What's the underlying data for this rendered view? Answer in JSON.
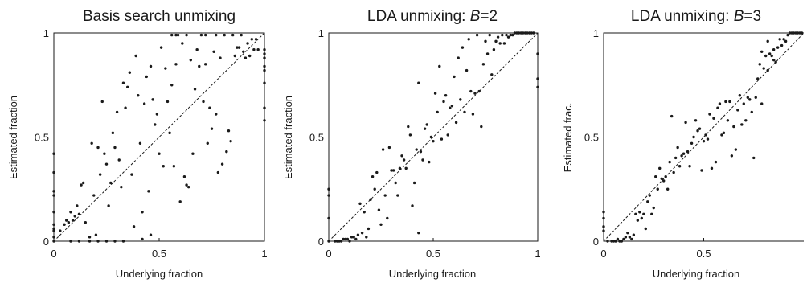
{
  "chart_data": [
    {
      "type": "scatter",
      "title": "Basis search unmixing",
      "title_plain": "Basis search unmixing",
      "title_italic": "",
      "title_suffix": "",
      "xlabel": "Underlying fraction",
      "ylabel": "Estimated fraction",
      "xlim": [
        0,
        1
      ],
      "ylim": [
        0,
        1
      ],
      "xticks": [
        0,
        0.5,
        1
      ],
      "yticks": [
        0,
        0.5,
        1
      ],
      "xticklabels": [
        "0",
        "0.5",
        "1"
      ],
      "yticklabels": [
        "0",
        "0.5",
        "1"
      ],
      "reference_line": "y = x (dashed)",
      "grid": false,
      "points": [
        [
          0,
          0.42
        ],
        [
          0,
          0.33
        ],
        [
          0,
          0.24
        ],
        [
          0,
          0.22
        ],
        [
          0,
          0.14
        ],
        [
          0,
          0.08
        ],
        [
          0,
          0.06
        ],
        [
          0,
          0.05
        ],
        [
          0,
          0.02
        ],
        [
          0,
          0
        ],
        [
          0.03,
          0.05
        ],
        [
          0.05,
          0.08
        ],
        [
          0.06,
          0.1
        ],
        [
          0.07,
          0.09
        ],
        [
          0.08,
          0.14
        ],
        [
          0.09,
          0.1
        ],
        [
          0.1,
          0.12
        ],
        [
          0.11,
          0.17
        ],
        [
          0.12,
          0.13
        ],
        [
          0.13,
          0.27
        ],
        [
          0.14,
          0.28
        ],
        [
          0.15,
          0.09
        ],
        [
          0.17,
          0.02
        ],
        [
          0.18,
          0.47
        ],
        [
          0.19,
          0.22
        ],
        [
          0.2,
          0.03
        ],
        [
          0.21,
          0.45
        ],
        [
          0.22,
          0.32
        ],
        [
          0.23,
          0.67
        ],
        [
          0.24,
          0.42
        ],
        [
          0.25,
          0.37
        ],
        [
          0.26,
          0.17
        ],
        [
          0.27,
          0.28
        ],
        [
          0.28,
          0.52
        ],
        [
          0.29,
          0.45
        ],
        [
          0.3,
          0.62
        ],
        [
          0.31,
          0.39
        ],
        [
          0.32,
          0.26
        ],
        [
          0.33,
          0.76
        ],
        [
          0.34,
          0.64
        ],
        [
          0.35,
          0.74
        ],
        [
          0.36,
          0.81
        ],
        [
          0.37,
          0.32
        ],
        [
          0.38,
          0.07
        ],
        [
          0.39,
          0.89
        ],
        [
          0.4,
          0.7
        ],
        [
          0.41,
          0.47
        ],
        [
          0.42,
          0.14
        ],
        [
          0.43,
          0.66
        ],
        [
          0.44,
          0.79
        ],
        [
          0.45,
          0.24
        ],
        [
          0.46,
          0.84
        ],
        [
          0.47,
          0.68
        ],
        [
          0.48,
          0.56
        ],
        [
          0.49,
          0.61
        ],
        [
          0.5,
          0.42
        ],
        [
          0.51,
          0.93
        ],
        [
          0.52,
          0.36
        ],
        [
          0.53,
          0.83
        ],
        [
          0.54,
          0.67
        ],
        [
          0.55,
          0.52
        ],
        [
          0.56,
          0.75
        ],
        [
          0.57,
          0.36
        ],
        [
          0.58,
          0.85
        ],
        [
          0.59,
          0.99
        ],
        [
          0.6,
          0.19
        ],
        [
          0.61,
          0.95
        ],
        [
          0.62,
          0.31
        ],
        [
          0.63,
          0.27
        ],
        [
          0.64,
          0.26
        ],
        [
          0.65,
          0.87
        ],
        [
          0.66,
          0.42
        ],
        [
          0.67,
          0.73
        ],
        [
          0.68,
          0.92
        ],
        [
          0.69,
          0.84
        ],
        [
          0.7,
          0.99
        ],
        [
          0.71,
          0.67
        ],
        [
          0.72,
          0.85
        ],
        [
          0.73,
          0.47
        ],
        [
          0.74,
          0.64
        ],
        [
          0.75,
          0.54
        ],
        [
          0.76,
          0.91
        ],
        [
          0.77,
          0.61
        ],
        [
          0.78,
          0.33
        ],
        [
          0.79,
          0.88
        ],
        [
          0.8,
          0.37
        ],
        [
          0.81,
          0.99
        ],
        [
          0.82,
          0.43
        ],
        [
          0.83,
          0.53
        ],
        [
          0.84,
          0.48
        ],
        [
          0.85,
          0.99
        ],
        [
          0.86,
          0.89
        ],
        [
          0.87,
          0.93
        ],
        [
          0.88,
          0.93
        ],
        [
          0.89,
          0.99
        ],
        [
          0.9,
          0.91
        ],
        [
          0.91,
          0.88
        ],
        [
          0.92,
          0.95
        ],
        [
          0.93,
          0.89
        ],
        [
          0.94,
          0.97
        ],
        [
          0.95,
          0.92
        ],
        [
          0.96,
          0.97
        ],
        [
          0.97,
          0.92
        ],
        [
          1,
          0.92
        ],
        [
          1,
          0.9
        ],
        [
          1,
          0.88
        ],
        [
          1,
          0.84
        ],
        [
          1,
          0.82
        ],
        [
          1,
          0.76
        ],
        [
          1,
          0.64
        ],
        [
          1,
          0.58
        ],
        [
          0.08,
          0
        ],
        [
          0.12,
          0
        ],
        [
          0.17,
          0
        ],
        [
          0.21,
          0
        ],
        [
          0.25,
          0
        ],
        [
          0.29,
          0
        ],
        [
          0.33,
          0
        ],
        [
          0.42,
          0.01
        ],
        [
          0.46,
          0.03
        ],
        [
          0.56,
          0.99
        ],
        [
          0.58,
          0.99
        ],
        [
          0.63,
          0.99
        ],
        [
          0.72,
          0.99
        ],
        [
          0.77,
          0.99
        ]
      ]
    },
    {
      "type": "scatter",
      "title": "LDA unmixing:  B=2",
      "title_plain": "LDA unmixing:  ",
      "title_italic": "B",
      "title_suffix": "=2",
      "xlabel": "Underlying fraction",
      "ylabel": "Estimated fraction",
      "xlim": [
        0,
        1
      ],
      "ylim": [
        0,
        1
      ],
      "xticks": [
        0,
        0.5,
        1
      ],
      "yticks": [
        0,
        0.5,
        1
      ],
      "xticklabels": [
        "0",
        "0.5",
        "1"
      ],
      "yticklabels": [
        "0",
        "0.5",
        "1"
      ],
      "reference_line": "y = x (dashed)",
      "grid": false,
      "points": [
        [
          0,
          0.25
        ],
        [
          0,
          0.22
        ],
        [
          0,
          0.11
        ],
        [
          0,
          0
        ],
        [
          0.03,
          0
        ],
        [
          0.04,
          0
        ],
        [
          0.05,
          0
        ],
        [
          0.06,
          0
        ],
        [
          0.07,
          0.01
        ],
        [
          0.08,
          0.01
        ],
        [
          0.09,
          0.01
        ],
        [
          0.1,
          0
        ],
        [
          0.11,
          0.02
        ],
        [
          0.12,
          0.02
        ],
        [
          0.13,
          0.01
        ],
        [
          0.14,
          0.03
        ],
        [
          0.15,
          0.18
        ],
        [
          0.16,
          0.04
        ],
        [
          0.17,
          0.14
        ],
        [
          0.18,
          0.02
        ],
        [
          0.19,
          0.06
        ],
        [
          0.2,
          0.2
        ],
        [
          0.21,
          0.31
        ],
        [
          0.22,
          0.25
        ],
        [
          0.23,
          0.33
        ],
        [
          0.24,
          0.15
        ],
        [
          0.25,
          0.08
        ],
        [
          0.26,
          0.44
        ],
        [
          0.27,
          0.22
        ],
        [
          0.28,
          0.11
        ],
        [
          0.29,
          0.45
        ],
        [
          0.3,
          0.34
        ],
        [
          0.31,
          0.34
        ],
        [
          0.32,
          0.28
        ],
        [
          0.33,
          0.22
        ],
        [
          0.34,
          0.35
        ],
        [
          0.35,
          0.41
        ],
        [
          0.36,
          0.39
        ],
        [
          0.37,
          0.35
        ],
        [
          0.38,
          0.55
        ],
        [
          0.39,
          0.51
        ],
        [
          0.4,
          0.17
        ],
        [
          0.41,
          0.28
        ],
        [
          0.42,
          0.44
        ],
        [
          0.43,
          0.76
        ],
        [
          0.44,
          0.43
        ],
        [
          0.45,
          0.39
        ],
        [
          0.46,
          0.54
        ],
        [
          0.47,
          0.56
        ],
        [
          0.48,
          0.38
        ],
        [
          0.49,
          0.5
        ],
        [
          0.5,
          0.48
        ],
        [
          0.51,
          0.71
        ],
        [
          0.52,
          0.62
        ],
        [
          0.53,
          0.84
        ],
        [
          0.54,
          0.49
        ],
        [
          0.55,
          0.67
        ],
        [
          0.56,
          0.7
        ],
        [
          0.57,
          0.51
        ],
        [
          0.58,
          0.64
        ],
        [
          0.59,
          0.65
        ],
        [
          0.6,
          0.79
        ],
        [
          0.61,
          0.57
        ],
        [
          0.62,
          0.88
        ],
        [
          0.63,
          0.68
        ],
        [
          0.64,
          0.93
        ],
        [
          0.65,
          0.62
        ],
        [
          0.66,
          0.82
        ],
        [
          0.67,
          0.97
        ],
        [
          0.68,
          0.72
        ],
        [
          0.69,
          0.61
        ],
        [
          0.7,
          0.71
        ],
        [
          0.71,
          0.99
        ],
        [
          0.72,
          0.72
        ],
        [
          0.73,
          0.55
        ],
        [
          0.74,
          0.85
        ],
        [
          0.75,
          0.96
        ],
        [
          0.76,
          0.9
        ],
        [
          0.77,
          0.99
        ],
        [
          0.78,
          0.8
        ],
        [
          0.79,
          0.92
        ],
        [
          0.8,
          0.96
        ],
        [
          0.81,
          0.98
        ],
        [
          0.82,
          0.95
        ],
        [
          0.83,
          0.99
        ],
        [
          0.84,
          0.95
        ],
        [
          0.85,
          0.99
        ],
        [
          0.86,
          0.98
        ],
        [
          0.87,
          0.99
        ],
        [
          0.88,
          0.99
        ],
        [
          0.89,
          1
        ],
        [
          0.9,
          1
        ],
        [
          0.91,
          1
        ],
        [
          0.92,
          1
        ],
        [
          0.93,
          1
        ],
        [
          0.94,
          1
        ],
        [
          0.95,
          1
        ],
        [
          0.96,
          1
        ],
        [
          0.97,
          1
        ],
        [
          0.98,
          1
        ],
        [
          1,
          0.9
        ],
        [
          1,
          0.78
        ],
        [
          1,
          0.74
        ],
        [
          0.43,
          0.04
        ]
      ]
    },
    {
      "type": "scatter",
      "title": "LDA unmixing:  B=3",
      "title_plain": "LDA unmixing:  ",
      "title_italic": "B",
      "title_suffix": "=3",
      "xlabel": "Underlying fraction",
      "ylabel": "Estimated frac.",
      "xlim": [
        0,
        1
      ],
      "ylim": [
        0,
        1
      ],
      "xticks": [
        0,
        0.5
      ],
      "yticks": [
        0,
        0.5,
        1
      ],
      "xticklabels": [
        "0",
        "0.5"
      ],
      "yticklabels": [
        "0",
        "0.5",
        "1"
      ],
      "reference_line": "y = x (dashed)",
      "grid": false,
      "points": [
        [
          0,
          0.14
        ],
        [
          0,
          0.11
        ],
        [
          0,
          0.07
        ],
        [
          0,
          0.05
        ],
        [
          0.02,
          0
        ],
        [
          0.04,
          0
        ],
        [
          0.05,
          0
        ],
        [
          0.06,
          0
        ],
        [
          0.07,
          0.01
        ],
        [
          0.08,
          0
        ],
        [
          0.09,
          0
        ],
        [
          0.1,
          0.01
        ],
        [
          0.11,
          0.02
        ],
        [
          0.12,
          0.04
        ],
        [
          0.13,
          0.02
        ],
        [
          0.14,
          0.01
        ],
        [
          0.15,
          0.03
        ],
        [
          0.16,
          0.13
        ],
        [
          0.17,
          0.1
        ],
        [
          0.18,
          0.14
        ],
        [
          0.19,
          0.11
        ],
        [
          0.2,
          0.13
        ],
        [
          0.21,
          0.06
        ],
        [
          0.22,
          0.19
        ],
        [
          0.23,
          0.22
        ],
        [
          0.24,
          0.13
        ],
        [
          0.25,
          0.16
        ],
        [
          0.26,
          0.31
        ],
        [
          0.27,
          0.25
        ],
        [
          0.28,
          0.35
        ],
        [
          0.29,
          0.3
        ],
        [
          0.3,
          0.29
        ],
        [
          0.31,
          0.31
        ],
        [
          0.32,
          0.25
        ],
        [
          0.33,
          0.38
        ],
        [
          0.34,
          0.6
        ],
        [
          0.35,
          0.33
        ],
        [
          0.36,
          0.4
        ],
        [
          0.37,
          0.45
        ],
        [
          0.38,
          0.36
        ],
        [
          0.39,
          0.41
        ],
        [
          0.4,
          0.42
        ],
        [
          0.41,
          0.57
        ],
        [
          0.42,
          0.43
        ],
        [
          0.43,
          0.36
        ],
        [
          0.44,
          0.47
        ],
        [
          0.45,
          0.5
        ],
        [
          0.46,
          0.58
        ],
        [
          0.47,
          0.53
        ],
        [
          0.48,
          0.54
        ],
        [
          0.49,
          0.34
        ],
        [
          0.5,
          0.48
        ],
        [
          0.51,
          0.51
        ],
        [
          0.52,
          0.49
        ],
        [
          0.53,
          0.61
        ],
        [
          0.54,
          0.35
        ],
        [
          0.55,
          0.59
        ],
        [
          0.56,
          0.38
        ],
        [
          0.57,
          0.64
        ],
        [
          0.58,
          0.66
        ],
        [
          0.59,
          0.51
        ],
        [
          0.6,
          0.52
        ],
        [
          0.61,
          0.67
        ],
        [
          0.62,
          0.58
        ],
        [
          0.63,
          0.67
        ],
        [
          0.64,
          0.41
        ],
        [
          0.65,
          0.55
        ],
        [
          0.66,
          0.44
        ],
        [
          0.67,
          0.63
        ],
        [
          0.68,
          0.7
        ],
        [
          0.69,
          0.56
        ],
        [
          0.7,
          0.66
        ],
        [
          0.71,
          0.58
        ],
        [
          0.72,
          0.69
        ],
        [
          0.73,
          0.68
        ],
        [
          0.74,
          0.62
        ],
        [
          0.75,
          0.4
        ],
        [
          0.76,
          0.69
        ],
        [
          0.77,
          0.78
        ],
        [
          0.78,
          0.85
        ],
        [
          0.79,
          0.66
        ],
        [
          0.8,
          0.83
        ],
        [
          0.81,
          0.89
        ],
        [
          0.82,
          0.82
        ],
        [
          0.83,
          0.9
        ],
        [
          0.84,
          0.89
        ],
        [
          0.85,
          0.87
        ],
        [
          0.86,
          0.86
        ],
        [
          0.87,
          0.93
        ],
        [
          0.88,
          0.97
        ],
        [
          0.89,
          0.94
        ],
        [
          0.9,
          0.97
        ],
        [
          0.91,
          0.96
        ],
        [
          0.92,
          0.99
        ],
        [
          0.93,
          1
        ],
        [
          0.94,
          1
        ],
        [
          0.95,
          1
        ],
        [
          0.96,
          1
        ],
        [
          0.97,
          1
        ],
        [
          0.98,
          1
        ],
        [
          0.99,
          1
        ],
        [
          0.79,
          0.91
        ],
        [
          0.82,
          0.96
        ],
        [
          0.85,
          0.92
        ]
      ]
    }
  ]
}
